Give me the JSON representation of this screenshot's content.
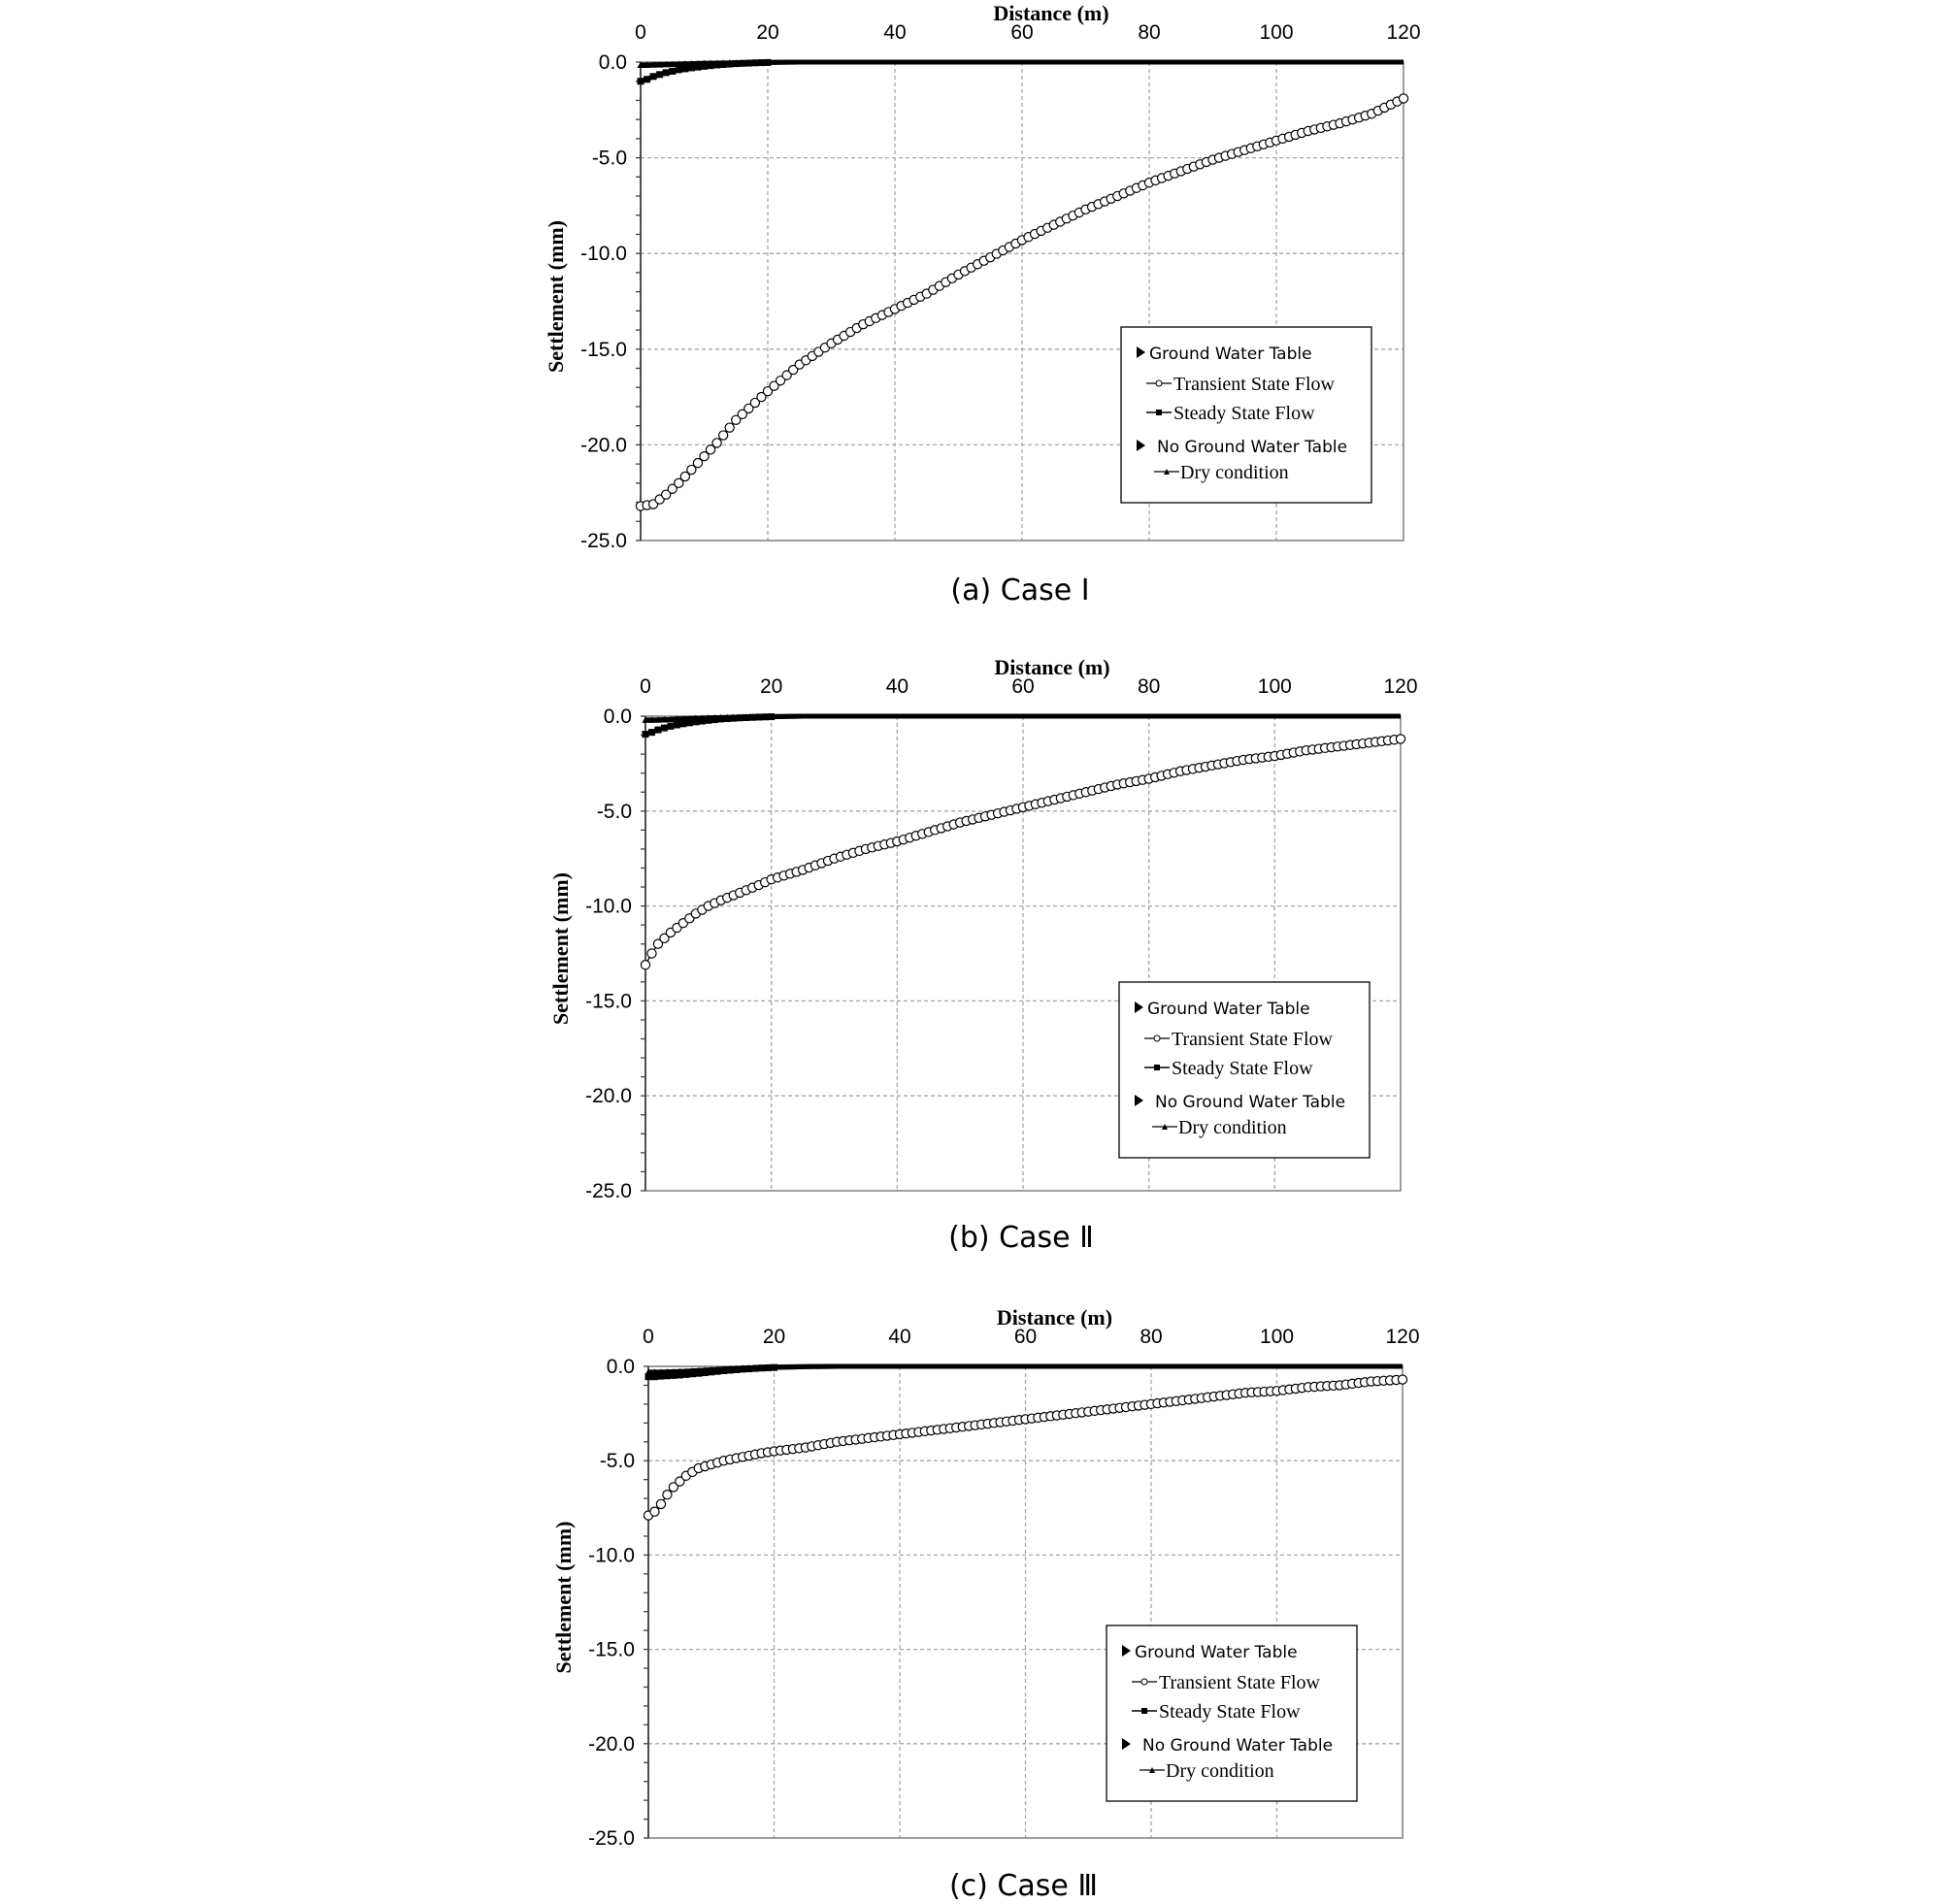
{
  "chart_data": [
    {
      "type": "line",
      "caption": "(a) Case Ⅰ",
      "xlabel": "Distance (m)",
      "ylabel": "Settlement (mm)",
      "xlim": [
        0,
        120
      ],
      "ylim": [
        -25.0,
        0.0
      ],
      "x_ticks": [
        "0",
        "20",
        "40",
        "60",
        "80",
        "100",
        "120"
      ],
      "y_ticks": [
        "0.0",
        "-5.0",
        "-10.0",
        "-15.0",
        "-20.0",
        "-25.0"
      ],
      "grid": true,
      "legend": {
        "position": "lower-right",
        "group1": "Ground Water Table",
        "transient": "Transient State Flow",
        "steady": "Steady State Flow",
        "group2": "No Ground Water Table",
        "dry": "Dry condition"
      },
      "series": [
        {
          "name": "Transient State Flow",
          "marker": "open-circle",
          "x": [
            0,
            2,
            4,
            6,
            8,
            10,
            12,
            15,
            18,
            20,
            25,
            30,
            35,
            40,
            45,
            50,
            55,
            60,
            65,
            70,
            75,
            80,
            85,
            90,
            95,
            100,
            105,
            110,
            115,
            120
          ],
          "y": [
            -23.2,
            -23.1,
            -22.6,
            -22.0,
            -21.3,
            -20.6,
            -19.9,
            -18.7,
            -17.8,
            -17.2,
            -15.8,
            -14.7,
            -13.7,
            -12.9,
            -12.1,
            -11.1,
            -10.2,
            -9.3,
            -8.5,
            -7.7,
            -7.0,
            -6.3,
            -5.7,
            -5.1,
            -4.6,
            -4.1,
            -3.6,
            -3.2,
            -2.7,
            -1.9
          ]
        },
        {
          "name": "Steady State Flow",
          "marker": "filled-square",
          "x": [
            0,
            1,
            2,
            3,
            4,
            5,
            6,
            8,
            10,
            12,
            15,
            18,
            20,
            25,
            30,
            40,
            60,
            80,
            100,
            120
          ],
          "y": [
            -1.0,
            -0.9,
            -0.75,
            -0.65,
            -0.55,
            -0.48,
            -0.4,
            -0.3,
            -0.22,
            -0.15,
            -0.08,
            -0.04,
            -0.02,
            0.0,
            0.0,
            0.0,
            0.0,
            0.0,
            0.0,
            0.0
          ]
        },
        {
          "name": "Dry condition",
          "marker": "filled-triangle",
          "x": [
            0,
            1,
            2,
            3,
            4,
            5,
            6,
            8,
            10,
            12,
            15,
            18,
            20,
            25,
            30,
            40,
            60,
            80,
            100,
            120
          ],
          "y": [
            -0.15,
            -0.15,
            -0.14,
            -0.13,
            -0.12,
            -0.11,
            -0.1,
            -0.08,
            -0.06,
            -0.05,
            -0.03,
            -0.02,
            -0.01,
            0.0,
            0.0,
            0.0,
            0.0,
            0.0,
            0.0,
            0.0
          ]
        }
      ]
    },
    {
      "type": "line",
      "caption": "(b) Case Ⅱ",
      "xlabel": "Distance (m)",
      "ylabel": "Settlement (mm)",
      "xlim": [
        0,
        120
      ],
      "ylim": [
        -25.0,
        0.0
      ],
      "x_ticks": [
        "0",
        "20",
        "40",
        "60",
        "80",
        "100",
        "120"
      ],
      "y_ticks": [
        "0.0",
        "-5.0",
        "-10.0",
        "-15.0",
        "-20.0",
        "-25.0"
      ],
      "grid": true,
      "legend": {
        "position": "lower-right",
        "group1": "Ground Water Table",
        "transient": "Transient State Flow",
        "steady": "Steady State Flow",
        "group2": "No Ground Water Table",
        "dry": "Dry condition"
      },
      "series": [
        {
          "name": "Transient State Flow",
          "marker": "open-circle",
          "x": [
            0,
            1,
            2,
            4,
            6,
            8,
            10,
            12,
            15,
            18,
            20,
            25,
            30,
            35,
            40,
            45,
            50,
            55,
            60,
            65,
            70,
            75,
            80,
            85,
            90,
            95,
            100,
            105,
            110,
            115,
            120
          ],
          "y": [
            -13.1,
            -12.5,
            -12.0,
            -11.4,
            -10.9,
            -10.4,
            -10.0,
            -9.7,
            -9.3,
            -8.9,
            -8.6,
            -8.1,
            -7.5,
            -7.0,
            -6.6,
            -6.1,
            -5.6,
            -5.2,
            -4.8,
            -4.4,
            -4.0,
            -3.6,
            -3.3,
            -2.9,
            -2.6,
            -2.3,
            -2.1,
            -1.8,
            -1.6,
            -1.4,
            -1.2
          ]
        },
        {
          "name": "Steady State Flow",
          "marker": "filled-square",
          "x": [
            0,
            1,
            2,
            3,
            4,
            5,
            6,
            8,
            10,
            12,
            15,
            18,
            20,
            25,
            30,
            40,
            60,
            80,
            100,
            120
          ],
          "y": [
            -0.95,
            -0.85,
            -0.72,
            -0.62,
            -0.53,
            -0.46,
            -0.4,
            -0.3,
            -0.22,
            -0.15,
            -0.09,
            -0.05,
            -0.03,
            0.0,
            0.0,
            0.0,
            0.0,
            0.0,
            0.0,
            0.0
          ]
        },
        {
          "name": "Dry condition",
          "marker": "filled-triangle",
          "x": [
            0,
            1,
            2,
            3,
            4,
            5,
            6,
            8,
            10,
            12,
            15,
            18,
            20,
            25,
            30,
            40,
            60,
            80,
            100,
            120
          ],
          "y": [
            -0.2,
            -0.2,
            -0.19,
            -0.18,
            -0.17,
            -0.15,
            -0.14,
            -0.11,
            -0.09,
            -0.07,
            -0.05,
            -0.03,
            -0.02,
            0.0,
            0.0,
            0.0,
            0.0,
            0.0,
            0.0,
            0.0
          ]
        }
      ]
    },
    {
      "type": "line",
      "caption": "(c) Case Ⅲ",
      "xlabel": "Distance (m)",
      "ylabel": "Settlement (mm)",
      "xlim": [
        0,
        120
      ],
      "ylim": [
        -25.0,
        0.0
      ],
      "x_ticks": [
        "0",
        "20",
        "40",
        "60",
        "80",
        "100",
        "120"
      ],
      "y_ticks": [
        "0.0",
        "-5.0",
        "-10.0",
        "-15.0",
        "-20.0",
        "-25.0"
      ],
      "grid": true,
      "legend": {
        "position": "lower-right",
        "group1": "Ground Water Table",
        "transient": "Transient State Flow",
        "steady": "Steady State Flow",
        "group2": "No Ground Water Table",
        "dry": "Dry condition"
      },
      "series": [
        {
          "name": "Transient State Flow",
          "marker": "open-circle",
          "x": [
            0,
            1,
            2,
            3,
            4,
            5,
            6,
            8,
            10,
            12,
            15,
            18,
            20,
            25,
            30,
            35,
            40,
            45,
            50,
            55,
            60,
            65,
            70,
            75,
            80,
            85,
            90,
            95,
            100,
            105,
            110,
            115,
            120
          ],
          "y": [
            -7.9,
            -7.7,
            -7.3,
            -6.8,
            -6.4,
            -6.1,
            -5.8,
            -5.4,
            -5.2,
            -5.0,
            -4.8,
            -4.6,
            -4.5,
            -4.3,
            -4.0,
            -3.8,
            -3.6,
            -3.4,
            -3.2,
            -3.0,
            -2.8,
            -2.6,
            -2.4,
            -2.2,
            -2.0,
            -1.8,
            -1.6,
            -1.4,
            -1.3,
            -1.1,
            -1.0,
            -0.8,
            -0.7
          ]
        },
        {
          "name": "Steady State Flow",
          "marker": "filled-square",
          "x": [
            0,
            1,
            2,
            3,
            4,
            5,
            6,
            8,
            10,
            12,
            15,
            18,
            20,
            25,
            30,
            40,
            60,
            80,
            100,
            120
          ],
          "y": [
            -0.55,
            -0.55,
            -0.52,
            -0.5,
            -0.48,
            -0.46,
            -0.43,
            -0.37,
            -0.3,
            -0.23,
            -0.15,
            -0.09,
            -0.06,
            -0.02,
            0.0,
            0.0,
            0.0,
            0.0,
            0.0,
            0.0
          ]
        },
        {
          "name": "Dry condition",
          "marker": "filled-triangle",
          "x": [
            0,
            1,
            2,
            3,
            4,
            5,
            6,
            8,
            10,
            12,
            15,
            18,
            20,
            25,
            30,
            40,
            60,
            80,
            100,
            120
          ],
          "y": [
            -0.3,
            -0.3,
            -0.3,
            -0.29,
            -0.28,
            -0.27,
            -0.26,
            -0.22,
            -0.18,
            -0.14,
            -0.09,
            -0.06,
            -0.04,
            -0.01,
            0.0,
            0.0,
            0.0,
            0.0,
            0.0,
            0.0
          ]
        }
      ]
    }
  ]
}
